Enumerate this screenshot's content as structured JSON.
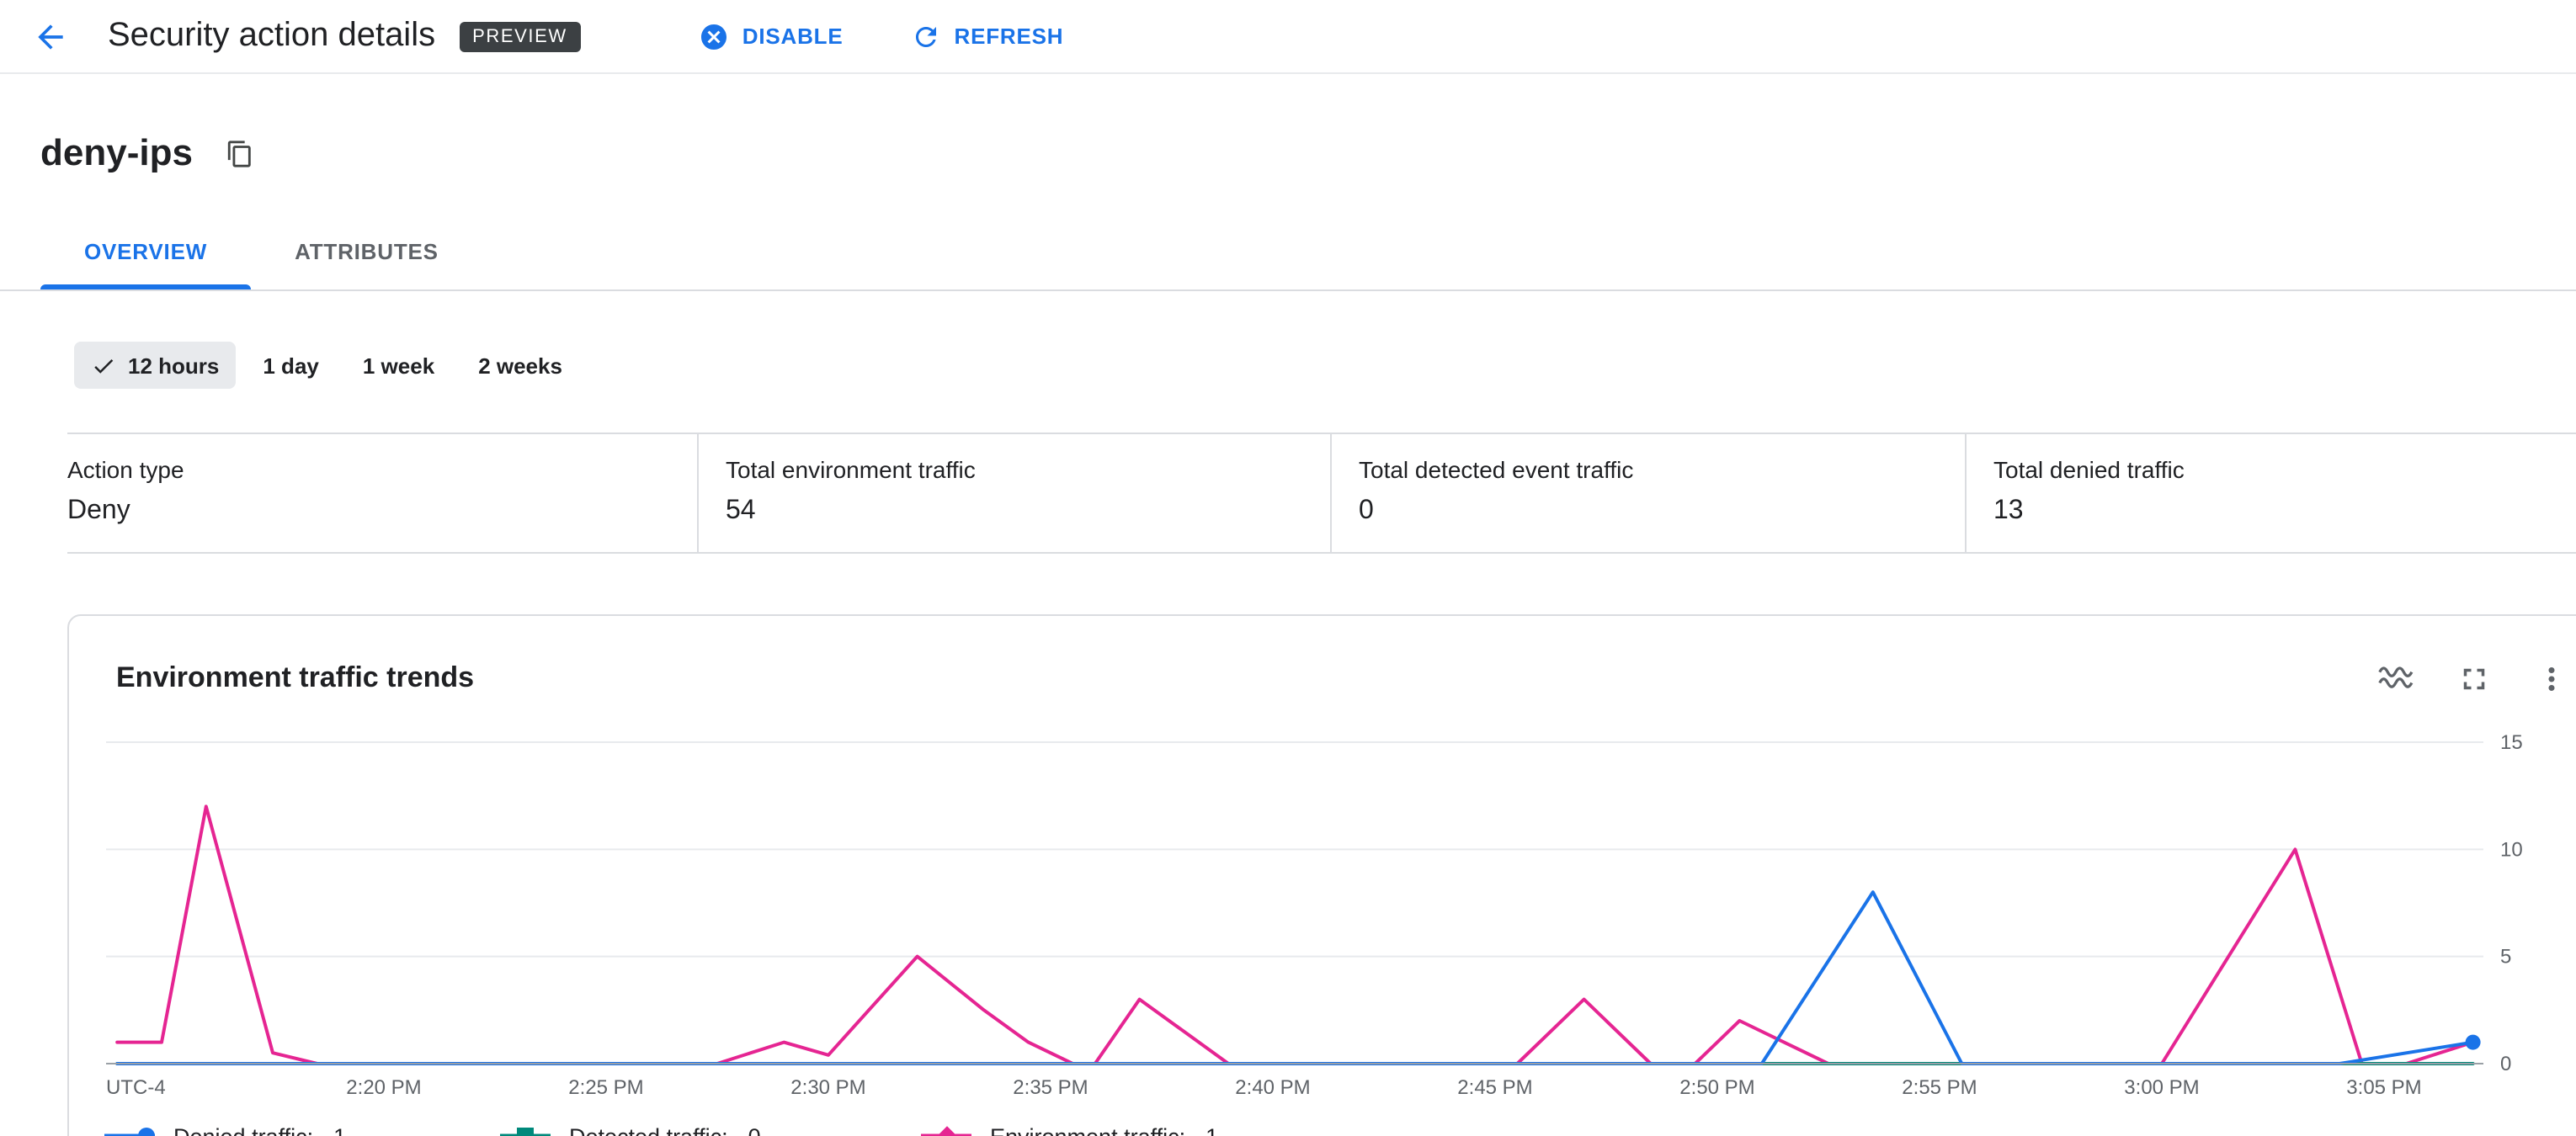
{
  "header": {
    "title": "Security action details",
    "preview_badge": "PREVIEW",
    "actions": {
      "disable": "DISABLE",
      "refresh": "REFRESH"
    }
  },
  "action": {
    "name": "deny-ips"
  },
  "tabs": [
    {
      "label": "OVERVIEW",
      "active": true
    },
    {
      "label": "ATTRIBUTES",
      "active": false
    }
  ],
  "time_filters": [
    {
      "label": "12 hours",
      "selected": true
    },
    {
      "label": "1 day",
      "selected": false
    },
    {
      "label": "1 week",
      "selected": false
    },
    {
      "label": "2 weeks",
      "selected": false
    }
  ],
  "stats": [
    {
      "label": "Action type",
      "value": "Deny"
    },
    {
      "label": "Total environment traffic",
      "value": "54"
    },
    {
      "label": "Total detected event traffic",
      "value": "0"
    },
    {
      "label": "Total denied traffic",
      "value": "13"
    }
  ],
  "chart_card": {
    "title": "Environment traffic trends"
  },
  "chart_data": {
    "type": "line",
    "title": "Environment traffic trends",
    "x_axis": {
      "timezone_label": "UTC-4",
      "tick_labels": [
        "2:20 PM",
        "2:25 PM",
        "2:30 PM",
        "2:35 PM",
        "2:40 PM",
        "2:45 PM",
        "2:50 PM",
        "2:55 PM",
        "3:00 PM",
        "3:05 PM"
      ],
      "domain": [
        "2:14 PM",
        "3:07 PM"
      ],
      "x_unit": "minutes after 2:14 PM"
    },
    "y_axis": {
      "ticks": [
        0,
        5,
        10,
        15
      ],
      "range": [
        0,
        15
      ]
    },
    "grid": "horizontal",
    "legend_position": "bottom",
    "series": [
      {
        "name": "Environment traffic",
        "color": "#e52592",
        "marker": "diamond",
        "current_value": 1,
        "end_dot": false,
        "points": [
          [
            0,
            1
          ],
          [
            1,
            1
          ],
          [
            2,
            12
          ],
          [
            3.5,
            0.5
          ],
          [
            4.5,
            0
          ],
          [
            13.5,
            0
          ],
          [
            15,
            1
          ],
          [
            16,
            0.4
          ],
          [
            18,
            5
          ],
          [
            19.5,
            2.5
          ],
          [
            20.5,
            1
          ],
          [
            21.5,
            0
          ],
          [
            22,
            0
          ],
          [
            23,
            3
          ],
          [
            24,
            1.5
          ],
          [
            25,
            0
          ],
          [
            31.5,
            0
          ],
          [
            33,
            3
          ],
          [
            34.5,
            0
          ],
          [
            35.5,
            0
          ],
          [
            36.5,
            2
          ],
          [
            37.5,
            1
          ],
          [
            38.5,
            0
          ],
          [
            46,
            0
          ],
          [
            49,
            10
          ],
          [
            50.5,
            0
          ],
          [
            51.5,
            0
          ],
          [
            53,
            1
          ]
        ]
      },
      {
        "name": "Detected traffic",
        "color": "#00897b",
        "marker": "square",
        "current_value": 0,
        "end_dot": false,
        "points": [
          [
            0,
            0
          ],
          [
            53,
            0
          ]
        ]
      },
      {
        "name": "Denied traffic",
        "color": "#1a73e8",
        "marker": "circle",
        "current_value": 1,
        "end_dot": true,
        "points": [
          [
            0,
            0
          ],
          [
            37,
            0
          ],
          [
            39.5,
            8
          ],
          [
            41.5,
            0
          ],
          [
            50,
            0
          ],
          [
            53,
            1
          ]
        ]
      }
    ],
    "legend": [
      {
        "series": "Denied traffic",
        "label": "Denied traffic:",
        "value": "1"
      },
      {
        "series": "Detected traffic",
        "label": "Detected traffic:",
        "value": "0"
      },
      {
        "series": "Environment traffic",
        "label": "Environment traffic:",
        "value": "1"
      }
    ]
  }
}
